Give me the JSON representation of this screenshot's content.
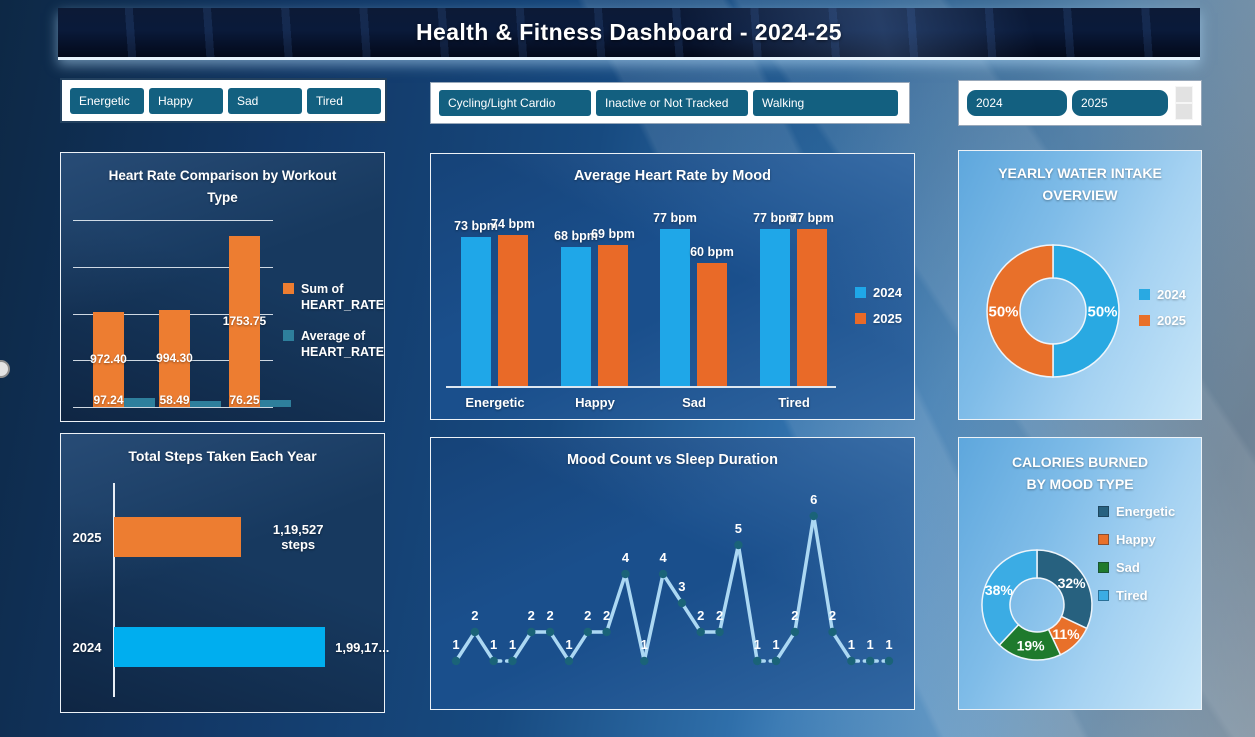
{
  "header": {
    "title": "Health & Fitness Dashboard - 2024-25"
  },
  "slicers": {
    "mood": {
      "items": [
        "Energetic",
        "Happy",
        "Sad",
        "Tired"
      ]
    },
    "workout": {
      "items": [
        "Cycling/Light Cardio",
        "Inactive or Not Tracked",
        "Walking"
      ]
    },
    "year": {
      "items": [
        "2024",
        "2025"
      ]
    }
  },
  "colors": {
    "slicer_button": "#136080",
    "blue_2024": "#1FA7E8",
    "orange_2025": "#ED7D31"
  },
  "chart_data": [
    {
      "id": "heart_rate_workout",
      "type": "bar",
      "title": "Heart Rate Comparison by Workout Type",
      "ylim": [
        0,
        2000
      ],
      "gridlines": 5,
      "series": [
        {
          "name": "Sum of HEART_RATE",
          "color": "#ED7D31",
          "values": [
            972.4,
            994.3,
            1753.75
          ],
          "labels": [
            "972.40",
            "994.30",
            "1753.75"
          ]
        },
        {
          "name": "Average of HEART_RATE",
          "color": "#2E7F9C",
          "values": [
            97.24,
            58.49,
            76.25
          ],
          "labels": [
            "97.24",
            "58.49",
            "76.25"
          ]
        }
      ]
    },
    {
      "id": "steps_year",
      "type": "bar-horizontal",
      "title": "Total Steps Taken Each Year",
      "categories": [
        "2025",
        "2024"
      ],
      "values": [
        119527,
        199170
      ],
      "value_labels": [
        "1,19,527\nsteps",
        "1,99,17..."
      ],
      "colors": [
        "#ED7D31",
        "#00AEEF"
      ],
      "xlim": [
        0,
        200000
      ]
    },
    {
      "id": "hr_mood",
      "type": "grouped-bar",
      "title": "Average Heart Rate by Mood",
      "categories": [
        "Energetic",
        "Happy",
        "Sad",
        "Tired"
      ],
      "unit": "bpm",
      "ylim": [
        0,
        110
      ],
      "series": [
        {
          "name": "2024",
          "color": "#1FA7E8",
          "values": [
            73,
            68,
            77,
            77
          ]
        },
        {
          "name": "2025",
          "color": "#E96A28",
          "values": [
            74,
            69,
            60,
            77
          ]
        }
      ],
      "legend_position": "right"
    },
    {
      "id": "mood_sleep",
      "type": "line",
      "title": "Mood Count vs Sleep Duration",
      "values": [
        1,
        2,
        1,
        1,
        2,
        2,
        1,
        2,
        2,
        4,
        1,
        4,
        3,
        2,
        2,
        5,
        1,
        1,
        2,
        6,
        2,
        1,
        1,
        1
      ],
      "ylim": [
        0,
        6
      ],
      "line_color": "#ACD8F3",
      "marker_color": "#1A6378"
    },
    {
      "id": "water_intake",
      "type": "donut",
      "title": "YEARLY WATER INTAKE OVERVIEW",
      "slices": [
        {
          "label": "2024",
          "pct": 50,
          "color": "#29A9E2"
        },
        {
          "label": "2025",
          "pct": 50,
          "color": "#E8702A"
        }
      ]
    },
    {
      "id": "calories_mood",
      "type": "donut",
      "title": "CALORIES BURNED BY MOOD TYPE",
      "slices": [
        {
          "label": "Energetic",
          "pct": 32,
          "color": "#27617F"
        },
        {
          "label": "Happy",
          "pct": 11,
          "color": "#E8702A"
        },
        {
          "label": "Sad",
          "pct": 19,
          "color": "#1F7A2D"
        },
        {
          "label": "Tired",
          "pct": 38,
          "color": "#3BACE4"
        }
      ]
    }
  ]
}
